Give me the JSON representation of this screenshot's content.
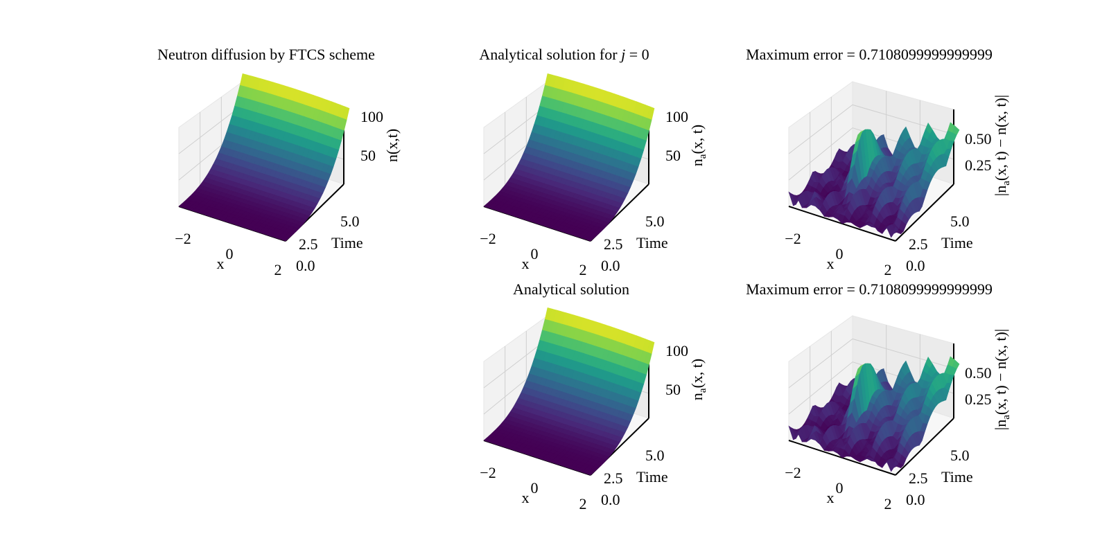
{
  "figure": {
    "chart_data": [
      {
        "type": "surface",
        "title": "Neutron diffusion by FTCS scheme",
        "xlabel": "x",
        "ylabel": "Time",
        "zlabel": "n(x,t)",
        "xlim": [
          -2.5,
          2.5
        ],
        "ylim": [
          0,
          8
        ],
        "zlim": [
          0,
          110
        ],
        "x_ticks": [
          "−2",
          "0",
          "2"
        ],
        "y_ticks": [
          "0.0",
          "2.5",
          "5.0"
        ],
        "z_ticks": [
          "50",
          "100"
        ],
        "surface": "grows with time from about 0 to 110, nearly constant in x",
        "colormap": "viridis"
      },
      {
        "type": "surface",
        "title": "Analytical solution for j = 0",
        "title_parts": {
          "text": "Analytical solution for ",
          "var": "j",
          "rest": " = 0"
        },
        "xlabel": "x",
        "ylabel": "Time",
        "zlabel": "na(x, t)",
        "zlabel_parts": {
          "main": "n",
          "sub": "a",
          "rest": "(x, t)"
        },
        "xlim": [
          -2.5,
          2.5
        ],
        "ylim": [
          0,
          8
        ],
        "zlim": [
          0,
          110
        ],
        "x_ticks": [
          "−2",
          "0",
          "2"
        ],
        "y_ticks": [
          "0.0",
          "2.5",
          "5.0"
        ],
        "z_ticks": [
          "50",
          "100"
        ],
        "colormap": "viridis"
      },
      {
        "type": "surface",
        "title": "Maximum error = 0.7108099999999999",
        "xlabel": "x",
        "ylabel": "Time",
        "zlabel": "|na(x, t) − n(x, t)|",
        "zlabel_parts": {
          "pre": "|n",
          "sub": "a",
          "rest": "(x, t) − n(x, t)|"
        },
        "max_error": 0.7108099999999999,
        "xlim": [
          -2.5,
          2.5
        ],
        "ylim": [
          0,
          8
        ],
        "zlim": [
          0,
          0.75
        ],
        "x_ticks": [
          "−2",
          "0",
          "2"
        ],
        "y_ticks": [
          "0.0",
          "2.5",
          "5.0"
        ],
        "z_ticks": [
          "0.25",
          "0.50"
        ],
        "colormap": "viridis"
      },
      {
        "type": "surface",
        "title": "Analytical solution",
        "xlabel": "x",
        "ylabel": "Time",
        "zlabel": "na(x, t)",
        "zlabel_parts": {
          "main": "n",
          "sub": "a",
          "rest": "(x, t)"
        },
        "xlim": [
          -2.5,
          2.5
        ],
        "ylim": [
          0,
          8
        ],
        "zlim": [
          0,
          110
        ],
        "x_ticks": [
          "−2",
          "0",
          "2"
        ],
        "y_ticks": [
          "0.0",
          "2.5",
          "5.0"
        ],
        "z_ticks": [
          "50",
          "100"
        ],
        "colormap": "viridis"
      },
      {
        "type": "surface",
        "title": "Maximum error = 0.7108099999999999",
        "xlabel": "x",
        "ylabel": "Time",
        "zlabel": "|na(x, t) − n(x, t)|",
        "zlabel_parts": {
          "pre": "|n",
          "sub": "a",
          "rest": "(x, t) − n(x, t)|"
        },
        "max_error": 0.7108099999999999,
        "xlim": [
          -2.5,
          2.5
        ],
        "ylim": [
          0,
          8
        ],
        "zlim": [
          0,
          0.75
        ],
        "x_ticks": [
          "−2",
          "0",
          "2"
        ],
        "y_ticks": [
          "0.0",
          "2.5",
          "5.0"
        ],
        "z_ticks": [
          "0.25",
          "0.50"
        ],
        "colormap": "viridis"
      }
    ]
  }
}
